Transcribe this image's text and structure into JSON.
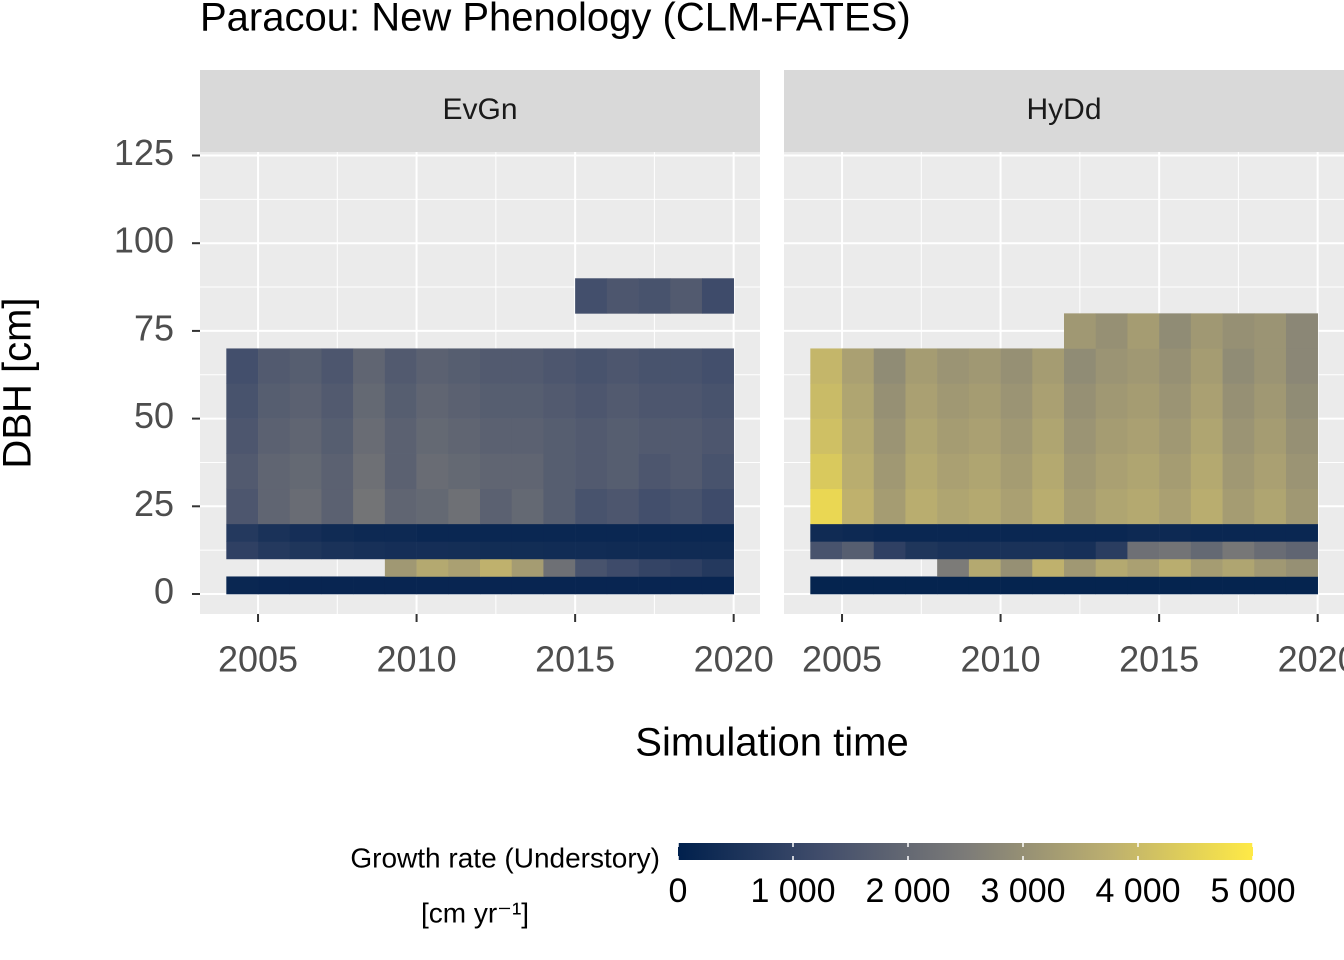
{
  "chart_data": {
    "type": "heatmap",
    "title": "Paracou: New Phenology (CLM-FATES)",
    "x_label": "Simulation time",
    "y_label": "DBH [cm]",
    "xlim": [
      2003.17,
      2020.83
    ],
    "ylim": [
      -5.7,
      126
    ],
    "xticks": [
      2005,
      2010,
      2015,
      2020
    ],
    "yticks": [
      0,
      25,
      50,
      75,
      100,
      125
    ],
    "grid": true,
    "x_edges": [
      2004,
      2005,
      2006,
      2007,
      2008,
      2009,
      2010,
      2011,
      2012,
      2013,
      2014,
      2015,
      2016,
      2017,
      2018,
      2019,
      2020
    ],
    "y_edges": [
      0,
      5,
      10,
      15,
      20,
      30,
      40,
      50,
      60,
      70,
      80,
      90
    ],
    "facets": [
      {
        "name": "EvGn",
        "values": [
          [
            200,
            150,
            150,
            150,
            150,
            150,
            150,
            150,
            150,
            150,
            150,
            150,
            150,
            150,
            150,
            150
          ],
          [
            null,
            null,
            null,
            null,
            null,
            3200,
            3600,
            3400,
            3800,
            3300,
            2200,
            1400,
            1200,
            1000,
            900,
            700
          ],
          [
            900,
            700,
            600,
            500,
            450,
            400,
            400,
            380,
            350,
            350,
            330,
            320,
            300,
            300,
            300,
            300
          ],
          [
            700,
            500,
            400,
            300,
            250,
            250,
            200,
            200,
            200,
            200,
            200,
            200,
            200,
            200,
            200,
            200
          ],
          [
            1500,
            1900,
            2100,
            1800,
            2300,
            1900,
            2000,
            2200,
            1800,
            2000,
            1700,
            1400,
            1500,
            1300,
            1400,
            1200
          ],
          [
            1600,
            1900,
            2000,
            1800,
            2200,
            1800,
            2100,
            2000,
            1900,
            1900,
            1700,
            1600,
            1700,
            1500,
            1600,
            1400
          ],
          [
            1500,
            1800,
            1900,
            1700,
            2100,
            1800,
            2000,
            1900,
            1800,
            1800,
            1700,
            1600,
            1700,
            1600,
            1600,
            1500
          ],
          [
            1400,
            1700,
            1800,
            1600,
            2000,
            1700,
            1900,
            1800,
            1700,
            1700,
            1600,
            1500,
            1600,
            1500,
            1500,
            1400
          ],
          [
            1300,
            1600,
            1700,
            1500,
            1900,
            1600,
            1800,
            1700,
            1600,
            1600,
            1500,
            1400,
            1500,
            1400,
            1400,
            1300
          ],
          [
            null,
            null,
            null,
            null,
            null,
            null,
            null,
            null,
            null,
            null,
            null,
            null,
            null,
            null,
            null,
            null
          ],
          [
            null,
            null,
            null,
            null,
            null,
            null,
            null,
            null,
            null,
            null,
            null,
            1300,
            1500,
            1400,
            1600,
            1200
          ]
        ]
      },
      {
        "name": "HyDd",
        "values": [
          [
            100,
            100,
            100,
            100,
            100,
            100,
            100,
            100,
            100,
            100,
            100,
            100,
            100,
            100,
            100,
            100
          ],
          [
            null,
            null,
            null,
            null,
            2500,
            3600,
            3000,
            3800,
            3200,
            3600,
            3400,
            3700,
            3300,
            3500,
            3200,
            3000
          ],
          [
            1400,
            1700,
            900,
            600,
            500,
            500,
            500,
            500,
            450,
            800,
            2200,
            2300,
            2000,
            2400,
            2100,
            1900
          ],
          [
            300,
            250,
            200,
            200,
            200,
            200,
            200,
            200,
            200,
            200,
            250,
            250,
            200,
            200,
            200,
            200
          ],
          [
            4600,
            3800,
            3300,
            3700,
            3500,
            3600,
            3400,
            3700,
            3300,
            3500,
            3600,
            3400,
            3700,
            3300,
            3500,
            3200
          ],
          [
            4300,
            3700,
            3200,
            3600,
            3400,
            3500,
            3300,
            3600,
            3200,
            3400,
            3500,
            3300,
            3600,
            3200,
            3400,
            3100
          ],
          [
            4100,
            3600,
            3100,
            3500,
            3300,
            3400,
            3200,
            3500,
            3100,
            3300,
            3400,
            3200,
            3500,
            3100,
            3300,
            3000
          ],
          [
            4000,
            3500,
            3000,
            3400,
            3200,
            3300,
            3100,
            3400,
            3000,
            3200,
            3300,
            3100,
            3400,
            3000,
            3200,
            2900
          ],
          [
            3900,
            3400,
            2900,
            3300,
            3100,
            3200,
            3000,
            3300,
            2900,
            3100,
            3200,
            3000,
            3300,
            2900,
            3100,
            2800
          ],
          [
            null,
            null,
            null,
            null,
            null,
            null,
            null,
            null,
            3200,
            3000,
            3300,
            2900,
            3200,
            3000,
            3100,
            2800
          ],
          [
            null,
            null,
            null,
            null,
            null,
            null,
            null,
            null,
            null,
            null,
            null,
            null,
            null,
            null,
            null,
            null
          ]
        ]
      }
    ],
    "colorbar": {
      "title": [
        "Growth rate (Understory)",
        "[cm yr⁻¹]"
      ],
      "lim": [
        0,
        5000
      ],
      "ticks": [
        0,
        {
          "value": 1000,
          "label": "1 000"
        },
        {
          "value": 2000,
          "label": "2 000"
        },
        {
          "value": 3000,
          "label": "3 000"
        },
        {
          "value": 4000,
          "label": "4 000"
        },
        {
          "value": 5000,
          "label": "5 000"
        }
      ],
      "colors": [
        "#00204D",
        "#414D6B",
        "#7C7B78",
        "#BCAF6F",
        "#FFEA46"
      ]
    }
  }
}
